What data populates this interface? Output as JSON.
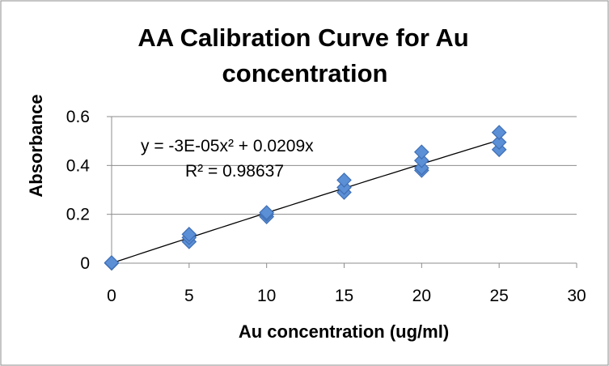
{
  "chart_data": {
    "type": "scatter",
    "title_lines": [
      "AA Calibration Curve for Au",
      "concentration"
    ],
    "xlabel": "Au concentration (ug/ml)",
    "ylabel": "Absorbance",
    "xlim": [
      0,
      30
    ],
    "ylim": [
      0,
      0.6
    ],
    "x_ticks": [
      "0",
      "5",
      "10",
      "15",
      "20",
      "25",
      "30"
    ],
    "y_ticks": [
      "0",
      "0.2",
      "0.4",
      "0.6"
    ],
    "x_tick_values": [
      0,
      5,
      10,
      15,
      20,
      25,
      30
    ],
    "y_tick_values": [
      0,
      0.2,
      0.4,
      0.6
    ],
    "grid": "horizontal",
    "legend": "none",
    "marker_color": "#5b8fd6",
    "marker_edge_color": "#3f6fb5",
    "trendline_color": "#000000",
    "series": [
      {
        "values": [
          {
            "x": 0,
            "y": 0.0
          },
          {
            "x": 0,
            "y": 0.002
          },
          {
            "x": 5,
            "y": 0.088
          },
          {
            "x": 5,
            "y": 0.105
          },
          {
            "x": 5,
            "y": 0.118
          },
          {
            "x": 10,
            "y": 0.19
          },
          {
            "x": 10,
            "y": 0.2
          },
          {
            "x": 10,
            "y": 0.207
          },
          {
            "x": 15,
            "y": 0.29
          },
          {
            "x": 15,
            "y": 0.31
          },
          {
            "x": 15,
            "y": 0.34
          },
          {
            "x": 20,
            "y": 0.38
          },
          {
            "x": 20,
            "y": 0.39
          },
          {
            "x": 20,
            "y": 0.42
          },
          {
            "x": 20,
            "y": 0.455
          },
          {
            "x": 25,
            "y": 0.465
          },
          {
            "x": 25,
            "y": 0.495
          },
          {
            "x": 25,
            "y": 0.535
          }
        ]
      }
    ],
    "trendline": {
      "type": "polynomial",
      "a2": -3e-05,
      "a1": 0.0209,
      "x_range": [
        0,
        25
      ],
      "equation_label": "y = -3E-05x² + 0.0209x",
      "r2_label": "R² = 0.98637"
    }
  }
}
